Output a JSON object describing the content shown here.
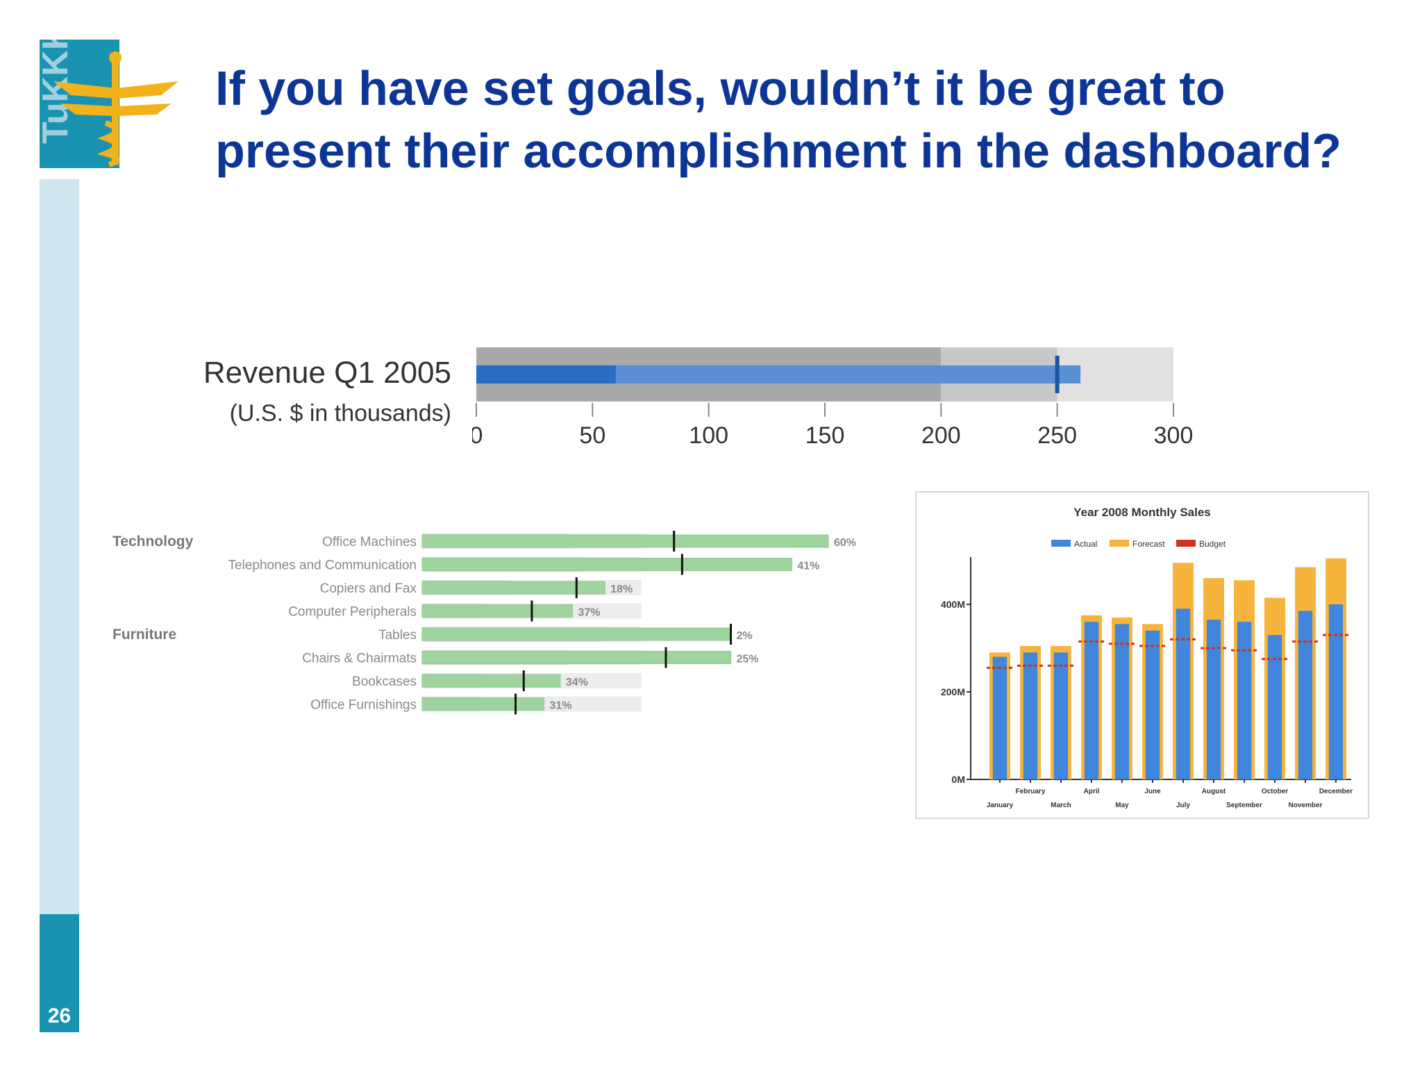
{
  "slide": {
    "title": "If you have set goals, wouldn’t it be great to present their accomplishment in the dashboard?",
    "page_number": "26",
    "logo_text": "TuKKK"
  },
  "colors": {
    "title": "#0d3595",
    "sidebar_light": "#cfe6ef",
    "sidebar_dark": "#1a93b1",
    "logo_gold": "#f2b21b",
    "bullet_bar": "#5a8fd6",
    "bullet_bar_dark": "#2a6cc4",
    "green_bar": "#9fd49f",
    "actual": "#3f86dc",
    "forecast": "#f6b43d",
    "budget": "#cc3322"
  },
  "chart_data": [
    {
      "type": "bullet",
      "title": "Revenue Q1 2005",
      "subtitle": "(U.S. $ in thousands)",
      "ranges": [
        200,
        250,
        300
      ],
      "measures": [
        60,
        260
      ],
      "target": 250,
      "xlim": [
        0,
        300
      ],
      "ticks": [
        "0",
        "50",
        "100",
        "150",
        "200",
        "250",
        "300"
      ]
    },
    {
      "type": "bullet",
      "groups": [
        {
          "name": "Technology",
          "items": [
            {
              "label": "Office Machines",
              "value": 1.0,
              "target": 0.62,
              "range": 0.36,
              "pct": "60%"
            },
            {
              "label": "Telephones and Communication",
              "value": 0.91,
              "target": 0.64,
              "range": 0.39,
              "pct": "41%"
            },
            {
              "label": "Copiers and Fax",
              "value": 0.45,
              "target": 0.38,
              "range": 0.22,
              "pct": "18%"
            },
            {
              "label": "Computer Peripherals",
              "value": 0.37,
              "target": 0.27,
              "range": 0.16,
              "pct": "37%"
            }
          ]
        },
        {
          "name": "Furniture",
          "items": [
            {
              "label": "Tables",
              "value": 0.76,
              "target": 0.76,
              "range": 0.45,
              "pct": "2%"
            },
            {
              "label": "Chairs & Chairmats",
              "value": 0.76,
              "target": 0.6,
              "range": 0.36,
              "pct": "25%"
            },
            {
              "label": "Bookcases",
              "value": 0.34,
              "target": 0.25,
              "range": 0.15,
              "pct": "34%"
            },
            {
              "label": "Office Furnishings",
              "value": 0.3,
              "target": 0.23,
              "range": 0.14,
              "pct": "31%"
            }
          ]
        }
      ]
    },
    {
      "type": "bar",
      "title": "Year 2008 Monthly Sales",
      "legend": [
        "Actual",
        "Forecast",
        "Budget"
      ],
      "categories": [
        "January",
        "February",
        "March",
        "April",
        "May",
        "June",
        "July",
        "August",
        "September",
        "October",
        "November",
        "December"
      ],
      "series": [
        {
          "name": "Actual",
          "values": [
            280,
            290,
            290,
            360,
            355,
            340,
            390,
            365,
            360,
            330,
            385,
            400
          ]
        },
        {
          "name": "Forecast",
          "values": [
            290,
            305,
            305,
            375,
            370,
            355,
            495,
            460,
            455,
            415,
            485,
            505
          ]
        },
        {
          "name": "Budget",
          "values": [
            255,
            260,
            260,
            315,
            310,
            305,
            320,
            300,
            295,
            275,
            315,
            330
          ]
        }
      ],
      "ylim": [
        0,
        500
      ],
      "yticks": [
        "0M",
        "200M",
        "400M"
      ]
    }
  ]
}
